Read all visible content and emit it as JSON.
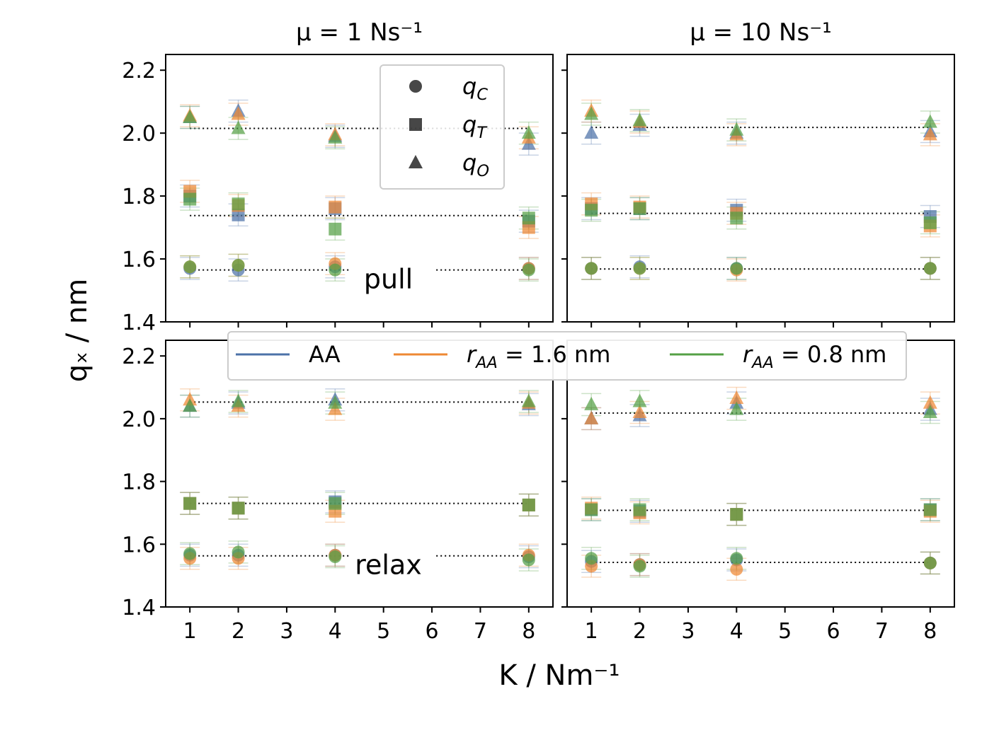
{
  "figure": {
    "xlabel": "K / Nm⁻¹",
    "ylabel": "qₓ / nm"
  },
  "chart_data": {
    "type": "scatter",
    "xlabel": "K / Nm⁻¹",
    "ylabel": "qₓ / nm",
    "xlim": [
      0.5,
      8.5
    ],
    "ylim": [
      1.4,
      2.25
    ],
    "x_ticks": [
      1,
      2,
      3,
      4,
      5,
      6,
      7,
      8
    ],
    "y_ticks": [
      1.4,
      1.6,
      1.8,
      2.0,
      2.2
    ],
    "grid": false,
    "series_legend": [
      {
        "name": "AA",
        "color": "#4c72a8"
      },
      {
        "name": "r_AA = 1.6 nm",
        "color": "#ee8833"
      },
      {
        "name": "r_AA = 0.8 nm",
        "color": "#55a045"
      }
    ],
    "marker_legend": [
      {
        "name": "q_C",
        "marker": "circle"
      },
      {
        "name": "q_T",
        "marker": "square"
      },
      {
        "name": "q_O",
        "marker": "triangle"
      }
    ],
    "panels": [
      {
        "id": "pull-mu1",
        "title": "μ = 1 Ns⁻¹",
        "annotation": "pull",
        "reference_lines": [
          1.565,
          1.738,
          2.015
        ],
        "data": {
          "q_C": {
            "AA": [
              [
                1,
                1.57
              ],
              [
                2,
                1.565
              ],
              [
                4,
                1.575
              ],
              [
                8,
                1.57
              ]
            ],
            "r_AA = 1.6 nm": [
              [
                1,
                1.575
              ],
              [
                2,
                1.58
              ],
              [
                4,
                1.585
              ],
              [
                8,
                1.57
              ]
            ],
            "r_AA = 0.8 nm": [
              [
                1,
                1.575
              ],
              [
                2,
                1.58
              ],
              [
                4,
                1.565
              ],
              [
                8,
                1.565
              ]
            ]
          },
          "q_T": {
            "AA": [
              [
                1,
                1.8
              ],
              [
                2,
                1.74
              ],
              [
                4,
                1.76
              ],
              [
                8,
                1.72
              ]
            ],
            "r_AA = 1.6 nm": [
              [
                1,
                1.815
              ],
              [
                2,
                1.77
              ],
              [
                4,
                1.765
              ],
              [
                8,
                1.7
              ]
            ],
            "r_AA = 0.8 nm": [
              [
                1,
                1.79
              ],
              [
                2,
                1.775
              ],
              [
                4,
                1.695
              ],
              [
                8,
                1.73
              ]
            ]
          },
          "q_O": {
            "AA": [
              [
                1,
                2.05
              ],
              [
                2,
                2.07
              ],
              [
                4,
                1.99
              ],
              [
                8,
                1.965
              ]
            ],
            "r_AA = 1.6 nm": [
              [
                1,
                2.055
              ],
              [
                2,
                2.06
              ],
              [
                4,
                1.995
              ],
              [
                8,
                1.985
              ]
            ],
            "r_AA = 0.8 nm": [
              [
                1,
                2.05
              ],
              [
                2,
                2.015
              ],
              [
                4,
                1.985
              ],
              [
                8,
                2.0
              ]
            ]
          }
        }
      },
      {
        "id": "pull-mu10",
        "title": "μ = 10 Ns⁻¹",
        "annotation": "",
        "reference_lines": [
          1.568,
          1.745,
          2.018
        ],
        "data": {
          "q_C": {
            "AA": [
              [
                1,
                1.57
              ],
              [
                2,
                1.575
              ],
              [
                4,
                1.57
              ],
              [
                8,
                1.57
              ]
            ],
            "r_AA = 1.6 nm": [
              [
                1,
                1.57
              ],
              [
                2,
                1.57
              ],
              [
                4,
                1.565
              ],
              [
                8,
                1.57
              ]
            ],
            "r_AA = 0.8 nm": [
              [
                1,
                1.57
              ],
              [
                2,
                1.57
              ],
              [
                4,
                1.57
              ],
              [
                8,
                1.57
              ]
            ]
          },
          "q_T": {
            "AA": [
              [
                1,
                1.76
              ],
              [
                2,
                1.76
              ],
              [
                4,
                1.755
              ],
              [
                8,
                1.735
              ]
            ],
            "r_AA = 1.6 nm": [
              [
                1,
                1.775
              ],
              [
                2,
                1.765
              ],
              [
                4,
                1.745
              ],
              [
                8,
                1.705
              ]
            ],
            "r_AA = 0.8 nm": [
              [
                1,
                1.755
              ],
              [
                2,
                1.76
              ],
              [
                4,
                1.73
              ],
              [
                8,
                1.715
              ]
            ]
          },
          "q_O": {
            "AA": [
              [
                1,
                2.0
              ],
              [
                2,
                2.025
              ],
              [
                4,
                2.0
              ],
              [
                8,
                2.005
              ]
            ],
            "r_AA = 1.6 nm": [
              [
                1,
                2.07
              ],
              [
                2,
                2.035
              ],
              [
                4,
                1.995
              ],
              [
                8,
                1.995
              ]
            ],
            "r_AA = 0.8 nm": [
              [
                1,
                2.06
              ],
              [
                2,
                2.04
              ],
              [
                4,
                2.01
              ],
              [
                8,
                2.035
              ]
            ]
          }
        }
      },
      {
        "id": "relax-mu1",
        "title": "",
        "annotation": "relax",
        "reference_lines": [
          1.563,
          1.73,
          2.053
        ],
        "data": {
          "q_C": {
            "AA": [
              [
                1,
                1.565
              ],
              [
                2,
                1.565
              ],
              [
                4,
                1.565
              ],
              [
                8,
                1.56
              ]
            ],
            "r_AA = 1.6 nm": [
              [
                1,
                1.555
              ],
              [
                2,
                1.555
              ],
              [
                4,
                1.565
              ],
              [
                8,
                1.565
              ]
            ],
            "r_AA = 0.8 nm": [
              [
                1,
                1.57
              ],
              [
                2,
                1.575
              ],
              [
                4,
                1.56
              ],
              [
                8,
                1.55
              ]
            ]
          },
          "q_T": {
            "AA": [
              [
                1,
                1.73
              ],
              [
                2,
                1.715
              ],
              [
                4,
                1.735
              ],
              [
                8,
                1.725
              ]
            ],
            "r_AA = 1.6 nm": [
              [
                1,
                1.73
              ],
              [
                2,
                1.715
              ],
              [
                4,
                1.705
              ],
              [
                8,
                1.725
              ]
            ],
            "r_AA = 0.8 nm": [
              [
                1,
                1.73
              ],
              [
                2,
                1.715
              ],
              [
                4,
                1.73
              ],
              [
                8,
                1.725
              ]
            ]
          },
          "q_O": {
            "AA": [
              [
                1,
                2.04
              ],
              [
                2,
                2.05
              ],
              [
                4,
                2.06
              ],
              [
                8,
                2.045
              ]
            ],
            "r_AA = 1.6 nm": [
              [
                1,
                2.06
              ],
              [
                2,
                2.04
              ],
              [
                4,
                2.03
              ],
              [
                8,
                2.05
              ]
            ],
            "r_AA = 0.8 nm": [
              [
                1,
                2.04
              ],
              [
                2,
                2.055
              ],
              [
                4,
                2.05
              ],
              [
                8,
                2.055
              ]
            ]
          }
        }
      },
      {
        "id": "relax-mu10",
        "title": "",
        "annotation": "",
        "reference_lines": [
          1.542,
          1.708,
          2.018
        ],
        "data": {
          "q_C": {
            "AA": [
              [
                1,
                1.545
              ],
              [
                2,
                1.535
              ],
              [
                4,
                1.55
              ],
              [
                8,
                1.54
              ]
            ],
            "r_AA = 1.6 nm": [
              [
                1,
                1.53
              ],
              [
                2,
                1.535
              ],
              [
                4,
                1.52
              ],
              [
                8,
                1.54
              ]
            ],
            "r_AA = 0.8 nm": [
              [
                1,
                1.555
              ],
              [
                2,
                1.53
              ],
              [
                4,
                1.555
              ],
              [
                8,
                1.54
              ]
            ]
          },
          "q_T": {
            "AA": [
              [
                1,
                1.71
              ],
              [
                2,
                1.705
              ],
              [
                4,
                1.695
              ],
              [
                8,
                1.71
              ]
            ],
            "r_AA = 1.6 nm": [
              [
                1,
                1.715
              ],
              [
                2,
                1.7
              ],
              [
                4,
                1.695
              ],
              [
                8,
                1.705
              ]
            ],
            "r_AA = 0.8 nm": [
              [
                1,
                1.71
              ],
              [
                2,
                1.71
              ],
              [
                4,
                1.695
              ],
              [
                8,
                1.71
              ]
            ]
          },
          "q_O": {
            "AA": [
              [
                1,
                2.0
              ],
              [
                2,
                2.01
              ],
              [
                4,
                2.05
              ],
              [
                8,
                2.03
              ]
            ],
            "r_AA = 1.6 nm": [
              [
                1,
                2.0
              ],
              [
                2,
                2.02
              ],
              [
                4,
                2.065
              ],
              [
                8,
                2.05
              ]
            ],
            "r_AA = 0.8 nm": [
              [
                1,
                2.045
              ],
              [
                2,
                2.055
              ],
              [
                4,
                2.03
              ],
              [
                8,
                2.02
              ]
            ]
          }
        }
      }
    ]
  }
}
